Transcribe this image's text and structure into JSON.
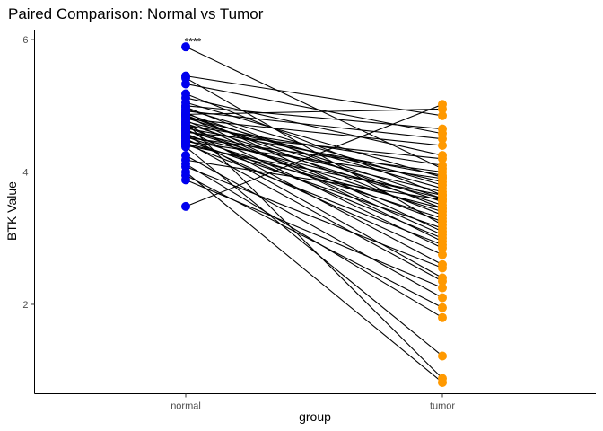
{
  "chart_data": {
    "type": "scatter",
    "title": "Paired Comparison: Normal vs Tumor",
    "xlabel": "group",
    "ylabel": "BTK Value",
    "categories": [
      "normal",
      "tumor"
    ],
    "y_ticks": [
      "2",
      "4",
      "6"
    ],
    "y_tick_values": [
      2,
      4,
      6
    ],
    "ylim": [
      0.65,
      6.15
    ],
    "grid": false,
    "legend": "none",
    "annotation": "****",
    "annotation_y": 5.9,
    "colors": {
      "normal": "#0000ee",
      "tumor": "#ff9900",
      "line": "#000000"
    },
    "pairs": [
      [
        5.89,
        4.05
      ],
      [
        5.45,
        4.85
      ],
      [
        5.42,
        3.2
      ],
      [
        5.33,
        4.58
      ],
      [
        5.18,
        3.65
      ],
      [
        5.12,
        4.25
      ],
      [
        5.05,
        3.92
      ],
      [
        5.0,
        4.65
      ],
      [
        4.98,
        3.45
      ],
      [
        4.95,
        3.8
      ],
      [
        4.92,
        4.5
      ],
      [
        4.9,
        3.1
      ],
      [
        4.88,
        3.6
      ],
      [
        4.87,
        4.95
      ],
      [
        4.86,
        3.35
      ],
      [
        4.85,
        2.95
      ],
      [
        4.84,
        3.75
      ],
      [
        4.82,
        3.55
      ],
      [
        4.8,
        4.4
      ],
      [
        4.78,
        3.05
      ],
      [
        4.76,
        3.85
      ],
      [
        4.75,
        0.88
      ],
      [
        4.73,
        3.5
      ],
      [
        4.72,
        2.85
      ],
      [
        4.7,
        4.1
      ],
      [
        4.68,
        3.25
      ],
      [
        4.66,
        3.95
      ],
      [
        4.65,
        2.6
      ],
      [
        4.63,
        3.4
      ],
      [
        4.62,
        3.7
      ],
      [
        4.6,
        4.2
      ],
      [
        4.58,
        3.0
      ],
      [
        4.56,
        2.4
      ],
      [
        4.55,
        3.6
      ],
      [
        4.53,
        3.3
      ],
      [
        4.52,
        4.0
      ],
      [
        4.5,
        2.75
      ],
      [
        4.48,
        3.15
      ],
      [
        4.46,
        3.9
      ],
      [
        4.45,
        2.35
      ],
      [
        4.43,
        3.45
      ],
      [
        4.42,
        2.9
      ],
      [
        4.4,
        3.65
      ],
      [
        4.38,
        1.22
      ],
      [
        4.25,
        2.1
      ],
      [
        4.18,
        3.58
      ],
      [
        4.12,
        1.8
      ],
      [
        4.08,
        2.55
      ],
      [
        4.0,
        0.82
      ],
      [
        3.95,
        1.95
      ],
      [
        3.88,
        2.25
      ],
      [
        3.48,
        5.02
      ]
    ]
  }
}
